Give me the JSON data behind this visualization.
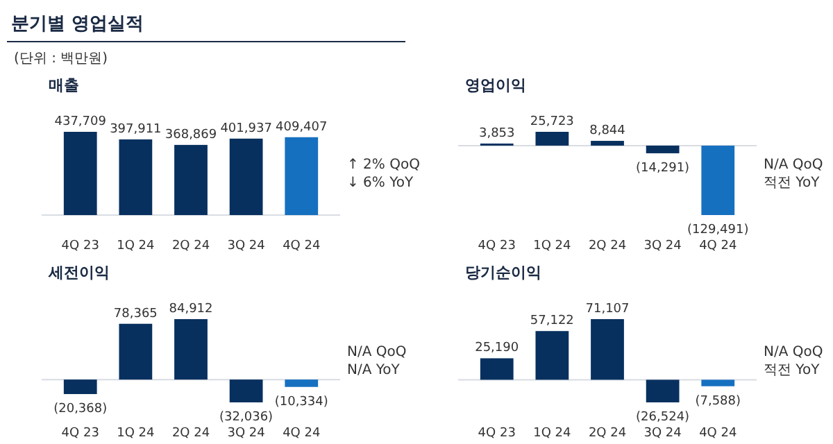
{
  "chart_data": [
    {
      "type": "other",
      "title": "분기별 영업실적",
      "annotations": [
        "(단위 : 백만원)"
      ]
    },
    {
      "type": "bar",
      "title": "매출",
      "categories": [
        "4Q 23",
        "1Q 24",
        "2Q 24",
        "3Q 24",
        "4Q 24"
      ],
      "values": [
        437709,
        397911,
        368869,
        401937,
        409407
      ],
      "colors": [
        "#08305f",
        "#08305f",
        "#08305f",
        "#08305f",
        "#1670c0"
      ],
      "value_labels": [
        "437,709",
        "397,911",
        "368,869",
        "401,937",
        "409,407"
      ],
      "annotations": [
        "↑ 2% QoQ",
        "↓ 6% YoY"
      ]
    },
    {
      "type": "bar",
      "title": "영업이익",
      "categories": [
        "4Q 23",
        "1Q 24",
        "2Q 24",
        "3Q 24",
        "4Q 24"
      ],
      "values": [
        3853,
        25723,
        8844,
        -14291,
        -129491
      ],
      "colors": [
        "#08305f",
        "#08305f",
        "#08305f",
        "#08305f",
        "#1670c0"
      ],
      "value_labels": [
        "3,853",
        "25,723",
        "8,844",
        "(14,291)",
        "(129,491)"
      ],
      "annotations": [
        "N/A QoQ",
        "적전 YoY"
      ]
    },
    {
      "type": "bar",
      "title": "세전이익",
      "categories": [
        "4Q 23",
        "1Q 24",
        "2Q 24",
        "3Q 24",
        "4Q 24"
      ],
      "values": [
        -20368,
        78365,
        84912,
        -32036,
        -10334
      ],
      "colors": [
        "#08305f",
        "#08305f",
        "#08305f",
        "#08305f",
        "#1670c0"
      ],
      "value_labels": [
        "(20,368)",
        "78,365",
        "84,912",
        "(32,036)",
        "(10,334)"
      ],
      "annotations": [
        "N/A QoQ",
        "N/A YoY"
      ]
    },
    {
      "type": "bar",
      "title": "당기순이익",
      "categories": [
        "4Q 23",
        "1Q 24",
        "2Q 24",
        "3Q 24",
        "4Q 24"
      ],
      "values": [
        25190,
        57122,
        71107,
        -26524,
        -7588
      ],
      "colors": [
        "#08305f",
        "#08305f",
        "#08305f",
        "#08305f",
        "#1670c0"
      ],
      "value_labels": [
        "25,190",
        "57,122",
        "71,107",
        "(26,524)",
        "(7,588)"
      ],
      "annotations": [
        "N/A QoQ",
        "적전 YoY"
      ]
    }
  ]
}
